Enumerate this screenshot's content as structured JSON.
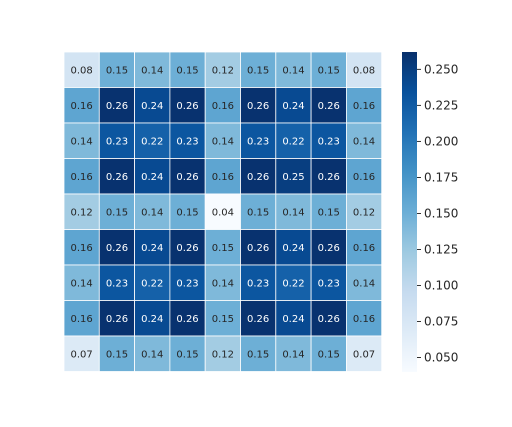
{
  "chart_data": {
    "type": "heatmap",
    "title": "",
    "xlabel": "",
    "ylabel": "",
    "rows": [
      [
        0.08,
        0.15,
        0.14,
        0.15,
        0.12,
        0.15,
        0.14,
        0.15,
        0.08
      ],
      [
        0.16,
        0.26,
        0.24,
        0.26,
        0.16,
        0.26,
        0.24,
        0.26,
        0.16
      ],
      [
        0.14,
        0.23,
        0.22,
        0.23,
        0.14,
        0.23,
        0.22,
        0.23,
        0.14
      ],
      [
        0.16,
        0.26,
        0.24,
        0.26,
        0.16,
        0.26,
        0.25,
        0.26,
        0.16
      ],
      [
        0.12,
        0.15,
        0.14,
        0.15,
        0.04,
        0.15,
        0.14,
        0.15,
        0.12
      ],
      [
        0.16,
        0.26,
        0.24,
        0.26,
        0.15,
        0.26,
        0.24,
        0.26,
        0.16
      ],
      [
        0.14,
        0.23,
        0.22,
        0.23,
        0.14,
        0.23,
        0.22,
        0.23,
        0.14
      ],
      [
        0.16,
        0.26,
        0.24,
        0.26,
        0.15,
        0.26,
        0.24,
        0.26,
        0.16
      ],
      [
        0.07,
        0.15,
        0.14,
        0.15,
        0.12,
        0.15,
        0.14,
        0.15,
        0.07
      ]
    ],
    "colormap": "Blues",
    "vmin": 0.04,
    "vmax": 0.262,
    "colorbar_ticks": [
      "0.050",
      "0.075",
      "0.100",
      "0.125",
      "0.150",
      "0.175",
      "0.200",
      "0.225",
      "0.250"
    ],
    "cell_border_color": "#ffffff",
    "annotation_light_text": "#ffffff",
    "annotation_dark_text": "#262626"
  }
}
